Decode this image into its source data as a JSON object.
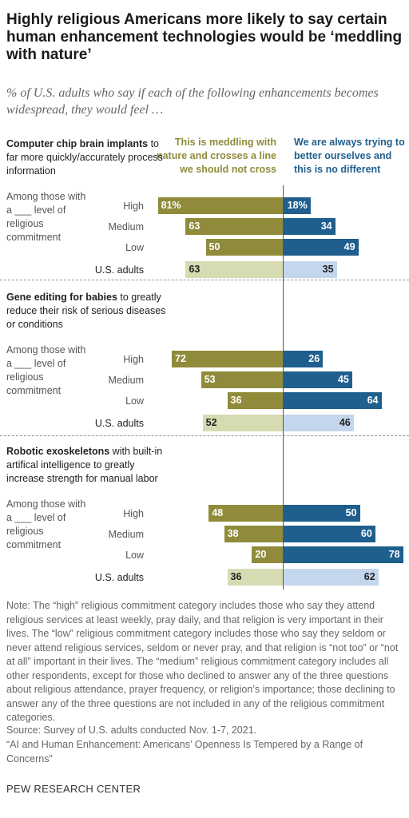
{
  "title": "Highly religious Americans more likely to say certain human enhancement technologies would be ‘meddling with nature’",
  "subtitle": "% of U.S. adults who say if each of the following enhancements becomes widespread, they would feel …",
  "headers": {
    "left": "This is meddling with nature and crosses a line we should not cross",
    "right": "We are always trying to better ourselves and this is no different"
  },
  "group_label": "Among those with a ___ level of religious commitment",
  "colors": {
    "meddling": "#8f8b3a",
    "meddling_total": "#d7dbb2",
    "better": "#1f5f8e",
    "better_total": "#c3d6ec"
  },
  "sections": [
    {
      "title_bold": "Computer chip brain implants",
      "title_rest": " to far more quickly/accurately process information"
    },
    {
      "title_bold": "Gene editing for babies",
      "title_rest": " to greatly reduce their risk of serious diseases or conditions"
    },
    {
      "title_bold": "Robotic exoskeletons",
      "title_rest": " with built-in artifical intelligence to greatly increase strength for manual labor"
    }
  ],
  "chart_data": {
    "type": "bar",
    "orientation": "horizontal-diverging",
    "series": [
      {
        "name": "This is meddling with nature and crosses a line we should not cross"
      },
      {
        "name": "We are always trying to better ourselves and this is no different"
      }
    ],
    "row_labels": [
      "High",
      "Medium",
      "Low",
      "U.S. adults"
    ],
    "panels": [
      {
        "title": "Computer chip brain implants to far more quickly/accurately process information",
        "meddling": [
          81,
          63,
          50,
          63
        ],
        "better": [
          18,
          34,
          49,
          35
        ],
        "labels_meddling": [
          "81%",
          "63",
          "50",
          "63"
        ],
        "labels_better": [
          "18%",
          "34",
          "49",
          "35"
        ]
      },
      {
        "title": "Gene editing for babies to greatly reduce their risk of serious diseases or conditions",
        "meddling": [
          72,
          53,
          36,
          52
        ],
        "better": [
          26,
          45,
          64,
          46
        ],
        "labels_meddling": [
          "72",
          "53",
          "36",
          "52"
        ],
        "labels_better": [
          "26",
          "45",
          "64",
          "46"
        ]
      },
      {
        "title": "Robotic exoskeletons with built-in artifical intelligence to greatly increase strength for manual labor",
        "meddling": [
          48,
          38,
          20,
          36
        ],
        "better": [
          50,
          60,
          78,
          62
        ],
        "labels_meddling": [
          "48",
          "38",
          "20",
          "36"
        ],
        "labels_better": [
          "50",
          "60",
          "78",
          "62"
        ]
      }
    ]
  },
  "note": "Note: The “high” religious commitment category includes those who say they attend religious services at least weekly, pray daily, and that religion is very important in their lives. The “low” religious commitment category includes those who say they seldom or never attend religious services, seldom or never pray, and that religion is “not too” or “not at all” important in their lives. The “medium” religious commitment category includes all other respondents, except for those who declined to answer any of the three questions about religious attendance, prayer frequency, or religion’s importance; those declining to answer any of the three questions are not included in any of the religious commitment categories.",
  "source": "Source: Survey of U.S. adults conducted Nov. 1-7, 2021.",
  "report": "“AI and Human Enhancement: Americans’ Openness Is Tempered by a Range of Concerns”",
  "brand": "PEW RESEARCH CENTER"
}
